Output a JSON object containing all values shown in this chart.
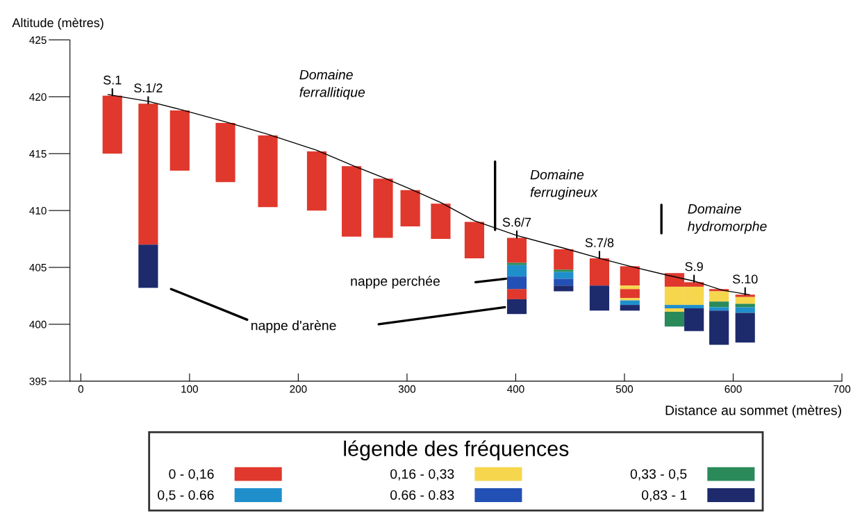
{
  "chart_data": {
    "type": "bar",
    "xlabel": "Distance au sommet (mètres)",
    "ylabel": "Altitude (mètres)",
    "legend_title": "légende des fréquences",
    "legend": "bottom",
    "grid": false,
    "xlim": [
      -10,
      700
    ],
    "xticks": [
      0,
      100,
      200,
      300,
      400,
      500,
      600,
      700
    ],
    "ylim": [
      395,
      425
    ],
    "yticks": [
      395,
      400,
      405,
      410,
      415,
      420,
      425
    ],
    "series": [
      {
        "name": "0 - 0,16",
        "color": "#e0382c",
        "x": [
          29,
          62,
          91,
          133,
          172,
          217,
          249,
          278,
          303,
          331,
          362,
          401,
          444,
          477,
          505,
          546,
          564,
          587,
          611
        ],
        "base": [
          415.0,
          407.0,
          413.5,
          412.5,
          410.3,
          410.0,
          407.7,
          407.6,
          408.6,
          407.5,
          405.8,
          405.4,
          404.8,
          403.4,
          403.4,
          403.3,
          403.3,
          402.9,
          402.4
        ],
        "values": [
          5.1,
          12.4,
          5.3,
          5.2,
          6.3,
          5.2,
          6.2,
          5.2,
          3.2,
          3.1,
          3.2,
          2.2,
          1.8,
          2.4,
          1.7,
          1.2,
          0.4,
          0.2,
          0.2
        ]
      },
      {
        "color": "#e0382c",
        "x": [
          401,
          505
        ],
        "base": [
          402.2,
          402.3
        ],
        "values": [
          0.9,
          0.8
        ]
      },
      {
        "name": "0,16 - 0,33",
        "color": "#f6d64c",
        "x": [
          505,
          546,
          564,
          587,
          611
        ],
        "base": [
          403.1,
          401.7,
          401.7,
          402.0,
          401.8
        ],
        "values": [
          0.3,
          1.6,
          1.6,
          0.9,
          0.6
        ]
      },
      {
        "color": "#f6d64c",
        "x": [
          505,
          546
        ],
        "base": [
          402.1,
          401.1
        ],
        "values": [
          0.2,
          0.3
        ]
      },
      {
        "name": "0,33 - 0,5",
        "color": "#2a8a5a",
        "x": [
          401,
          444,
          546,
          587,
          611
        ],
        "base": [
          405.2,
          404.6,
          399.8,
          401.5,
          401.5
        ],
        "values": [
          0.2,
          0.2,
          1.3,
          0.5,
          0.3
        ]
      },
      {
        "name": "0,5 - 0.66",
        "color": "#1f8fcc",
        "x": [
          401,
          444,
          505,
          546,
          564,
          587,
          611
        ],
        "base": [
          404.2,
          404.0,
          401.7,
          401.4,
          401.4,
          401.2,
          401.0
        ],
        "values": [
          1.0,
          0.6,
          0.4,
          0.3,
          0.3,
          0.3,
          0.5
        ]
      },
      {
        "name": "0.66 - 0.83",
        "color": "#2350b4",
        "x": [
          401,
          444
        ],
        "base": [
          403.1,
          403.4
        ],
        "values": [
          1.1,
          0.6
        ]
      },
      {
        "name": "0,83 - 1",
        "color": "#1d2a6c",
        "x": [
          62,
          401,
          444,
          477,
          505,
          564,
          587,
          611
        ],
        "base": [
          403.2,
          400.9,
          402.9,
          401.2,
          401.2,
          399.4,
          398.2,
          398.4
        ],
        "values": [
          3.8,
          1.3,
          0.5,
          2.2,
          0.5,
          2.0,
          3.0,
          2.6
        ]
      },
      {
        "type": "line",
        "color": "#000000",
        "x": [
          25,
          62,
          91,
          133,
          172,
          217,
          249,
          278,
          303,
          331,
          362,
          401,
          444,
          477,
          505,
          540,
          564,
          590,
          615
        ],
        "values": [
          420.2,
          419.6,
          418.9,
          417.8,
          416.7,
          415.3,
          414.0,
          412.9,
          411.9,
          410.7,
          409.1,
          407.8,
          406.7,
          405.8,
          405.1,
          404.3,
          403.8,
          403.0,
          402.6
        ]
      },
      {
        "type": "line",
        "color": "#000000",
        "x": [
          381,
          381
        ],
        "values": [
          408.3,
          414.3
        ]
      },
      {
        "type": "line",
        "color": "#000000",
        "x": [
          534,
          534
        ],
        "values": [
          408.0,
          410.5
        ]
      },
      {
        "type": "line",
        "color": "#000000",
        "x": [
          363,
          391
        ],
        "values": [
          403.7,
          404.0
        ]
      },
      {
        "type": "line",
        "color": "#000000",
        "x": [
          83,
          153
        ],
        "values": [
          403.1,
          400.4
        ]
      },
      {
        "type": "line",
        "color": "#000000",
        "x": [
          274,
          390
        ],
        "values": [
          400.0,
          401.5
        ]
      }
    ],
    "annotations": [
      {
        "text": "S.1",
        "x": 29,
        "y": 420.1
      },
      {
        "text": "S.1/2",
        "x": 62,
        "y": 419.4
      },
      {
        "text": "S.6/7",
        "x": 401,
        "y": 407.6
      },
      {
        "text": "S.7/8",
        "x": 477,
        "y": 405.8
      },
      {
        "text": "S.9",
        "x": 564,
        "y": 403.7
      },
      {
        "text": "S.10",
        "x": 611,
        "y": 402.6
      },
      "Domaine\nferrallitique",
      "Domaine\nferrugineux",
      "Domaine\nhydromorphe",
      "nappe perchée",
      "nappe d'arène"
    ]
  }
}
